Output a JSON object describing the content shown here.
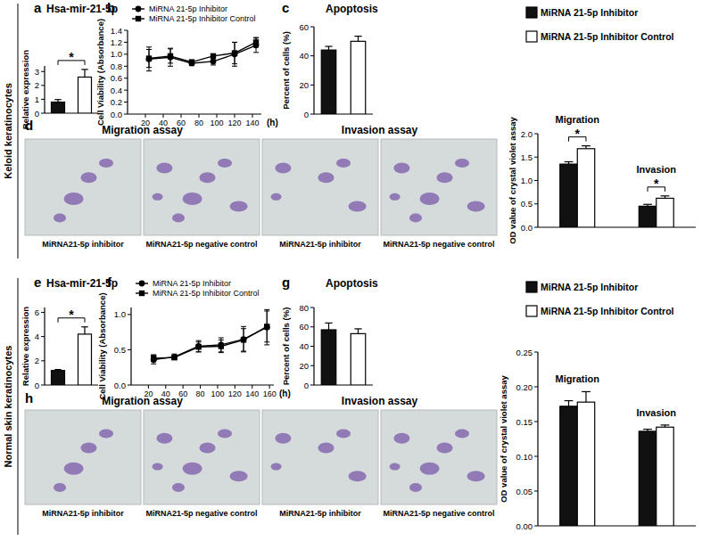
{
  "figure": {
    "row_labels": [
      "Keloid keratinocytes",
      "Normal skin keratinocytes"
    ]
  },
  "chart_data": [
    {
      "type": "bar",
      "panel": "a",
      "title": "Hsa-mir-21-5p",
      "y_label": "Relative expression",
      "categories": [
        null,
        null
      ],
      "values": [
        0.8,
        2.6
      ],
      "errors": [
        0.18,
        0.55
      ],
      "colors": [
        "#111111",
        "#ffffff"
      ],
      "ylim": [
        0,
        3.4
      ],
      "yticks": [
        0,
        1,
        2,
        3
      ],
      "significance": "*",
      "tick_labels": "y"
    },
    {
      "type": "line",
      "panel": "b",
      "y_label": "Cell Viability (Absorbance)",
      "x_label": "(h)",
      "x": [
        24,
        48,
        72,
        96,
        120,
        144
      ],
      "series": [
        {
          "name": "MiRNA 21-5p Inhibitor",
          "color": "#000000",
          "marker": "circle",
          "values": [
            0.92,
            0.95,
            0.85,
            0.88,
            1.0,
            1.15
          ],
          "errors": [
            0.2,
            0.15,
            0.04,
            0.06,
            0.2,
            0.12
          ]
        },
        {
          "name": "MiRNA 21-5p Inhibitor Control",
          "color": "#000000",
          "marker": "square",
          "values": [
            0.93,
            0.97,
            0.87,
            0.97,
            1.02,
            1.2
          ],
          "errors": [
            0.15,
            0.12,
            0.03,
            0.03,
            0.18,
            0.08
          ]
        }
      ],
      "xlim": [
        0,
        150
      ],
      "ylim": [
        0,
        1.4
      ],
      "xticks": [
        20,
        40,
        60,
        80,
        100,
        120,
        140
      ],
      "yticks": [
        {
          "value": 0,
          "label": "0.0"
        },
        0.2,
        0.4,
        0.6,
        0.8,
        {
          "value": 1,
          "label": "1.0"
        },
        1.2,
        1.4
      ],
      "legend": "upper left"
    },
    {
      "type": "bar",
      "panel": "c",
      "title": "Apoptosis",
      "y_label": "Percent of cells (%)",
      "categories": [
        null,
        null
      ],
      "values": [
        44,
        50
      ],
      "errors": [
        2.5,
        3.5
      ],
      "colors": [
        "#111111",
        "#ffffff"
      ],
      "ylim": [
        0,
        60
      ],
      "yticks": [
        0,
        20,
        40,
        60
      ],
      "tick_labels": "y"
    },
    {
      "type": "bar",
      "panel": "d",
      "y_label": "OD value of crystal violet assay",
      "categories": [
        "Migration",
        "Invasion"
      ],
      "series": [
        {
          "name": "MiRNA 21-5p Inhibitor",
          "color": "#111111",
          "values": [
            1.35,
            0.45
          ],
          "errors": [
            0.05,
            0.04
          ]
        },
        {
          "name": "MiRNA 21-5p Inhibitor Control",
          "color": "#ffffff",
          "values": [
            1.68,
            0.62
          ],
          "errors": [
            0.06,
            0.05
          ]
        }
      ],
      "significance": [
        "*",
        "*"
      ],
      "ylim": [
        0,
        2
      ],
      "yticks": [
        {
          "value": 0,
          "label": "0.0"
        },
        0.5,
        {
          "value": 1,
          "label": "1.0"
        },
        1.5,
        {
          "value": 2,
          "label": "2.0"
        }
      ],
      "tick_labels": "y",
      "legend": "upper right",
      "images": {
        "headings": [
          "Migration assay",
          "Invasion assay"
        ],
        "captions": [
          "MiRNA21-5p inhibitor",
          "MiRNA21-5p negative control",
          "MiRNA21-5p inhibitor",
          "MiRNA21-5p negative control"
        ]
      }
    },
    {
      "type": "bar",
      "panel": "e",
      "title": "Hsa-mir-21-5p",
      "y_label": "Relative expression",
      "categories": [
        null,
        null
      ],
      "values": [
        1.2,
        4.2
      ],
      "errors": [
        0.08,
        0.6
      ],
      "colors": [
        "#111111",
        "#ffffff"
      ],
      "ylim": [
        0,
        6.4
      ],
      "yticks": [
        0,
        2,
        4,
        6
      ],
      "significance": "*",
      "tick_labels": "y"
    },
    {
      "type": "line",
      "panel": "f",
      "y_label": "Cell Viability (Absorbance)",
      "x_label": "(h)",
      "x": [
        26,
        50,
        78,
        104,
        130,
        157
      ],
      "series": [
        {
          "name": "MiRNA 21-5p Inhibitor",
          "color": "#000000",
          "marker": "circle",
          "values": [
            0.36,
            0.4,
            0.55,
            0.57,
            0.65,
            0.82
          ],
          "errors": [
            0.06,
            0.04,
            0.08,
            0.1,
            0.18,
            0.25
          ]
        },
        {
          "name": "MiRNA 21-5p Inhibitor Control",
          "color": "#000000",
          "marker": "square",
          "values": [
            0.38,
            0.39,
            0.54,
            0.55,
            0.64,
            0.83
          ],
          "errors": [
            0.05,
            0.03,
            0.07,
            0.09,
            0.16,
            0.22
          ]
        }
      ],
      "xlim": [
        0,
        165
      ],
      "ylim": [
        0,
        1.1
      ],
      "xticks": [
        20,
        40,
        60,
        80,
        100,
        120,
        140,
        160
      ],
      "yticks": [
        {
          "value": 0,
          "label": "0.0"
        },
        0.5,
        {
          "value": 1,
          "label": "1.0"
        }
      ],
      "legend": "upper left"
    },
    {
      "type": "bar",
      "panel": "g",
      "title": "Apoptosis",
      "y_label": "Percent of cells (%)",
      "categories": [
        null,
        null
      ],
      "values": [
        57,
        53
      ],
      "errors": [
        7,
        5
      ],
      "colors": [
        "#111111",
        "#ffffff"
      ],
      "ylim": [
        0,
        80
      ],
      "yticks": [
        0,
        20,
        40,
        60,
        80
      ],
      "tick_labels": "y"
    },
    {
      "type": "bar",
      "panel": "h",
      "y_label": "OD value of crystal violet assay",
      "categories": [
        "Migration",
        "Invasion"
      ],
      "series": [
        {
          "name": "MiRNA 21-5p Inhibitor",
          "color": "#111111",
          "values": [
            0.172,
            0.136
          ],
          "errors": [
            0.008,
            0.003
          ]
        },
        {
          "name": "MiRNA 21-5p Inhibitor Control",
          "color": "#ffffff",
          "values": [
            0.178,
            0.142
          ],
          "errors": [
            0.015,
            0.003
          ]
        }
      ],
      "ylim": [
        0,
        0.25
      ],
      "yticks": [
        {
          "value": 0,
          "label": "0.00"
        },
        0.05,
        {
          "value": 0.1,
          "label": "0.10"
        },
        0.15,
        {
          "value": 0.2,
          "label": "0.20"
        },
        0.25
      ],
      "tick_labels": "y",
      "legend": "upper right",
      "images": {
        "headings": [
          "Migration assay",
          "Invasion assay"
        ],
        "captions": [
          "MiRNA21-5p inhibitor",
          "MiRNA21-5p negative control",
          "MiRNA21-5p inhibitor",
          "MiRNA21-5p negative control"
        ]
      }
    }
  ]
}
